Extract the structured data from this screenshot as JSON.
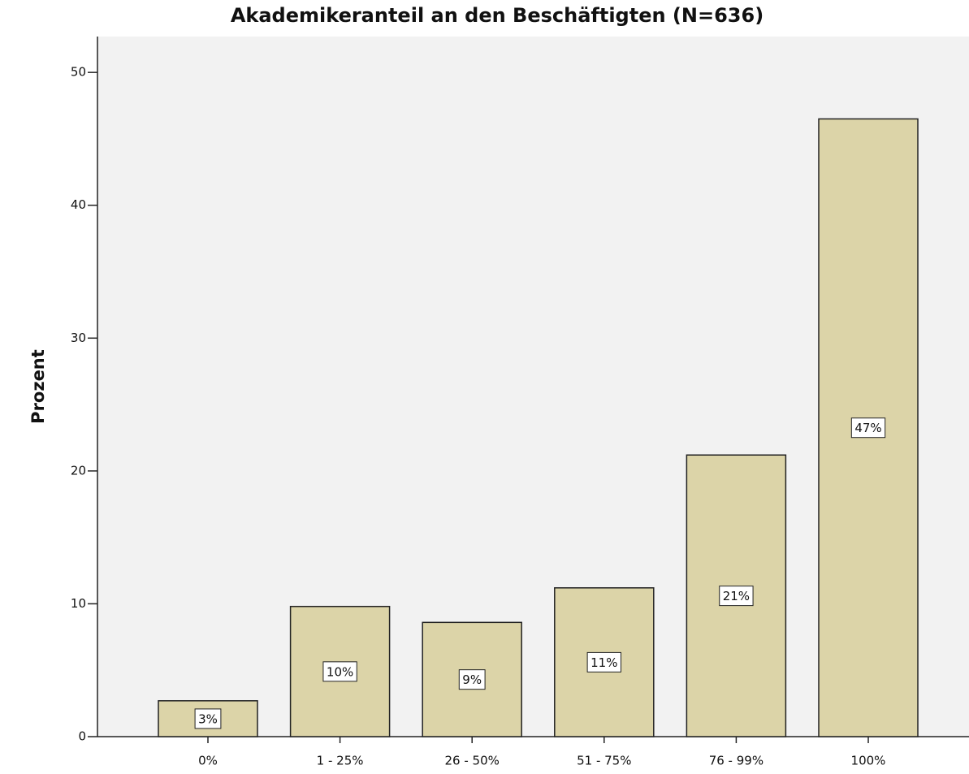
{
  "chart_data": {
    "type": "bar",
    "title": "Akademikeranteil an den Beschäftigten (N=636)",
    "y_label": "Prozent",
    "categories": [
      "0%",
      "1 - 25%",
      "26 - 50%",
      "51 - 75%",
      "76 - 99%",
      "100%"
    ],
    "values": [
      2.7,
      9.8,
      8.6,
      11.2,
      21.2,
      46.5
    ],
    "value_labels": [
      "3%",
      "10%",
      "9%",
      "11%",
      "21%",
      "47%"
    ],
    "color": "#dcd4a8",
    "ylim": [
      0,
      52.7
    ],
    "yticks": [
      0,
      10,
      20,
      30,
      40,
      50
    ],
    "grid": false
  }
}
